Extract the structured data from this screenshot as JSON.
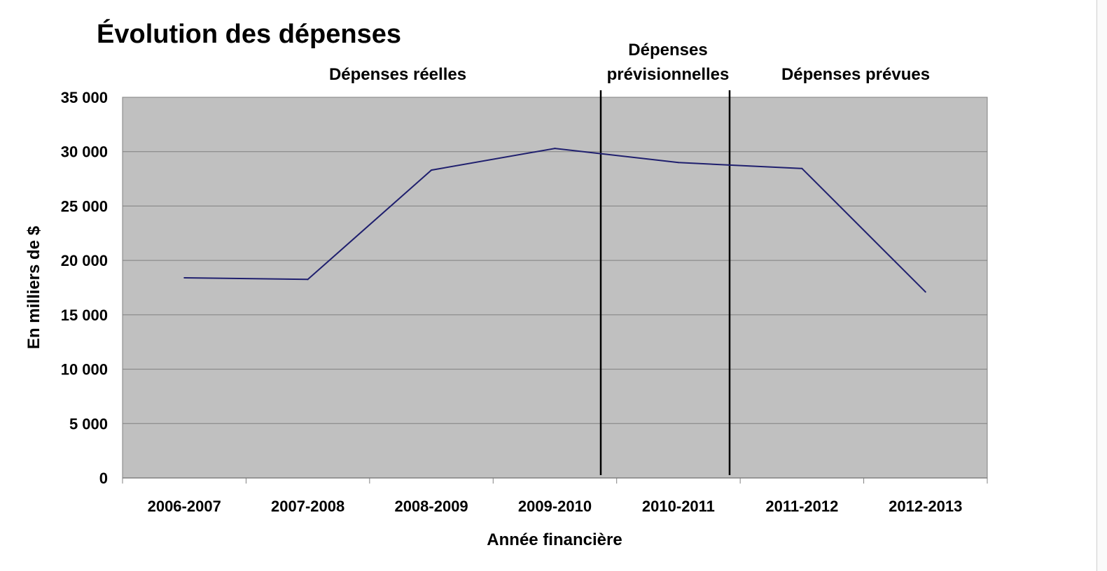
{
  "chart_data": {
    "type": "line",
    "title": "Évolution des dépenses",
    "xlabel": "Année financière",
    "ylabel": "En milliers de $",
    "categories": [
      "2006-2007",
      "2007-2008",
      "2008-2009",
      "2009-2010",
      "2010-2011",
      "2011-2012",
      "2012-2013"
    ],
    "series": [
      {
        "values": [
          18400,
          18250,
          28300,
          30300,
          29000,
          28450,
          17100
        ],
        "color": "#1f1f6e"
      }
    ],
    "ylim": [
      0,
      35000
    ],
    "yticks": [
      0,
      5000,
      10000,
      15000,
      20000,
      25000,
      30000,
      35000
    ],
    "ytick_labels": [
      "0",
      "5 000",
      "10 000",
      "15 000",
      "20 000",
      "25 000",
      "30 000",
      "35 000"
    ],
    "grid": true,
    "plot_background": "#c0c0c0",
    "regions": [
      {
        "label": "Dépenses réelles"
      },
      {
        "label_lines": [
          "Dépenses",
          "prévisionnelles"
        ]
      },
      {
        "label": "Dépenses prévues"
      }
    ]
  }
}
